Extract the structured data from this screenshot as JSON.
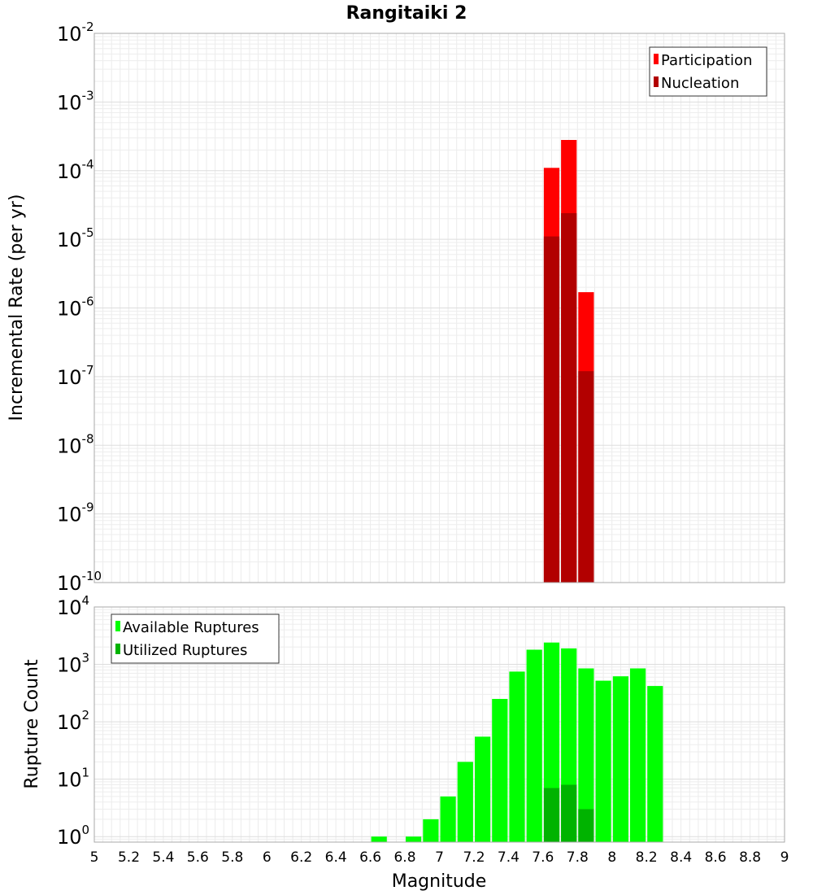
{
  "chart_data": [
    {
      "type": "bar",
      "title": "Rangitaiki 2",
      "ylabel": "Incremental Rate (per yr)",
      "xlabel": "",
      "yscale": "log",
      "ylim": [
        1e-10,
        0.01
      ],
      "xlim": [
        5,
        9
      ],
      "ytick_bases": [
        "10",
        "10",
        "10",
        "10",
        "10",
        "10",
        "10",
        "10",
        "10"
      ],
      "ytick_exponents": [
        "-10",
        "-9",
        "-8",
        "-7",
        "-6",
        "-5",
        "-4",
        "-3",
        "-2"
      ],
      "legend_position": "top-right",
      "grid": true,
      "bin_width": 0.1,
      "series": [
        {
          "name": "Participation",
          "color": "#ff0000",
          "x": [
            7.65,
            7.75,
            7.85
          ],
          "values": [
            0.00011,
            0.00028,
            1.7e-06
          ]
        },
        {
          "name": "Nucleation",
          "color": "#b20000",
          "x": [
            7.65,
            7.75,
            7.85
          ],
          "values": [
            1.1e-05,
            2.4e-05,
            1.2e-07
          ]
        }
      ]
    },
    {
      "type": "bar",
      "title": "",
      "ylabel": "Rupture Count",
      "xlabel": "Magnitude",
      "yscale": "log",
      "ylim": [
        0.8,
        10000
      ],
      "xlim": [
        5,
        9
      ],
      "xticks": [
        "5",
        "5.2",
        "5.4",
        "5.6",
        "5.8",
        "6",
        "6.2",
        "6.4",
        "6.6",
        "6.8",
        "7",
        "7.2",
        "7.4",
        "7.6",
        "7.8",
        "8",
        "8.2",
        "8.4",
        "8.6",
        "8.8",
        "9"
      ],
      "ytick_bases": [
        "10",
        "10",
        "10",
        "10",
        "10"
      ],
      "ytick_exponents": [
        "0",
        "1",
        "2",
        "3",
        "4"
      ],
      "legend_position": "top-left",
      "grid": true,
      "bin_width": 0.1,
      "series": [
        {
          "name": "Available Ruptures",
          "color": "#00ff00",
          "x": [
            6.65,
            6.85,
            6.95,
            7.05,
            7.15,
            7.25,
            7.35,
            7.45,
            7.55,
            7.65,
            7.75,
            7.85,
            7.95,
            8.05,
            8.15,
            8.25
          ],
          "values": [
            1,
            1,
            2,
            5,
            20,
            55,
            250,
            750,
            1800,
            2400,
            1900,
            850,
            520,
            620,
            850,
            420
          ]
        },
        {
          "name": "Utilized Ruptures",
          "color": "#00b300",
          "x": [
            7.65,
            7.75,
            7.85
          ],
          "values": [
            7,
            8,
            3
          ]
        }
      ]
    }
  ]
}
